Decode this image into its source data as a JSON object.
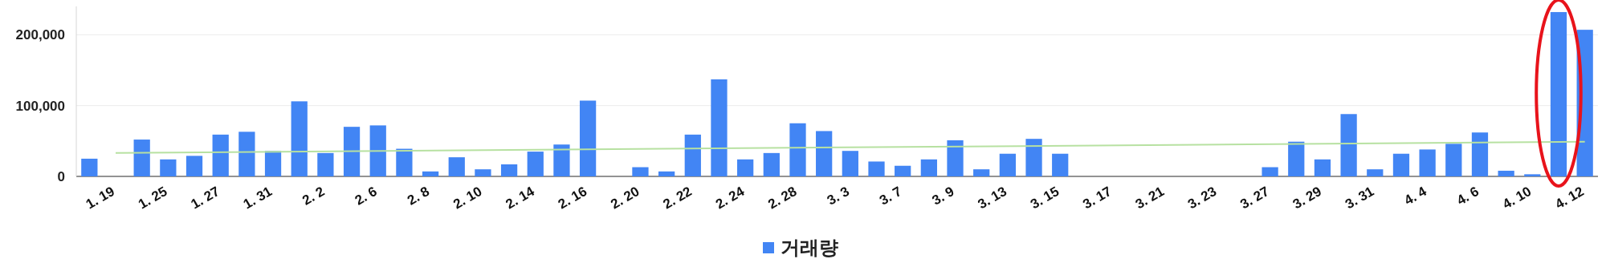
{
  "chart_data": {
    "type": "bar",
    "categories": [
      null,
      "1. 19",
      null,
      "1. 25",
      null,
      "1. 27",
      null,
      "1. 31",
      null,
      "2. 2",
      null,
      "2. 6",
      null,
      "2. 8",
      null,
      "2. 10",
      null,
      "2. 14",
      null,
      "2. 16",
      null,
      "2. 20",
      null,
      "2. 22",
      null,
      "2. 24",
      null,
      "2. 28",
      null,
      "3. 3",
      null,
      "3. 7",
      null,
      "3. 9",
      null,
      "3. 13",
      null,
      "3. 15",
      null,
      "3. 17",
      null,
      "3. 21",
      null,
      "3. 23",
      null,
      "3. 27",
      null,
      "3. 29",
      null,
      "3. 31",
      null,
      "4. 4",
      null,
      "4. 6",
      null,
      "4. 10",
      null,
      "4. 12"
    ],
    "series": [
      {
        "name": "거래량",
        "color": "#4285f4",
        "values": [
          25000,
          0,
          52000,
          24000,
          29000,
          59000,
          63000,
          36000,
          106000,
          33000,
          70000,
          72000,
          39000,
          7000,
          27000,
          10000,
          17000,
          35000,
          45000,
          107000,
          0,
          13000,
          7000,
          59000,
          137000,
          24000,
          33000,
          75000,
          64000,
          36000,
          21000,
          15000,
          24000,
          51000,
          10000,
          32000,
          53000,
          32000,
          0,
          0,
          0,
          0,
          0,
          0,
          0,
          13000,
          49000,
          24000,
          88000,
          10000,
          32000,
          38000,
          46000,
          62000,
          8000,
          3000,
          232000,
          207000
        ]
      },
      {
        "type": "line",
        "color": "#b7e1a1",
        "x": [
          "1. 19",
          "4. 12"
        ],
        "values": [
          33000,
          49000
        ]
      }
    ],
    "yticks": [
      0,
      {
        "value": 100000,
        "label": "100,000"
      },
      {
        "value": 200000,
        "label": "200,000"
      }
    ],
    "ylim": [
      0,
      240000
    ],
    "grid": "y",
    "legend": "bottom"
  }
}
